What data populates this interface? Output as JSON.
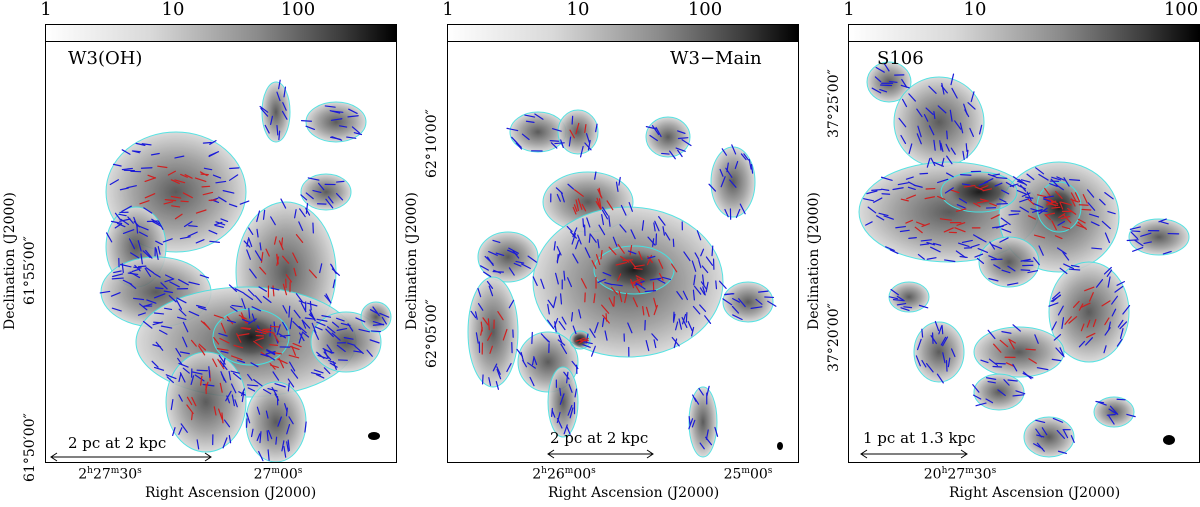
{
  "colorbar": {
    "ticks": [
      "1",
      "10",
      "100"
    ],
    "scale": "grayscale"
  },
  "colors": {
    "contour": "#44e0e0",
    "vec_blue": "#1a1ad8",
    "vec_red": "#d02020"
  },
  "panels": [
    {
      "title": "W3(OH)",
      "scale_label": "2 pc at 2 kpc",
      "xlabel": "Right Ascension (J2000)",
      "ylabel": "Declination (J2000)",
      "xticks": [
        "2h27m30s",
        "27m00s"
      ],
      "xticks_parts": [
        {
          "base": "2",
          "h": "h",
          "m": "27",
          "mu": "m",
          "s": "30",
          "su": "s"
        },
        {
          "base": "",
          "h": "",
          "m": "27",
          "mu": "m",
          "s": "00",
          "su": "s"
        }
      ],
      "yticks": [
        "61°55′00″",
        "61°50′00″"
      ]
    },
    {
      "title": "W3−Main",
      "scale_label": "2 pc at 2 kpc",
      "xlabel": "Right Ascension (J2000)",
      "ylabel": "Declination (J2000)",
      "xticks": [
        "2h26m00s",
        "25m00s"
      ],
      "yticks": [
        "62°10′00″",
        "62°05′00″"
      ]
    },
    {
      "title": "S106",
      "scale_label": "1 pc at 1.3 kpc",
      "xlabel": "Right Ascension (J2000)",
      "ylabel": "Declination (J2000)",
      "xticks": [
        "20h27m30s"
      ],
      "yticks": [
        "37°25′00″",
        "37°20′00″"
      ]
    }
  ]
}
